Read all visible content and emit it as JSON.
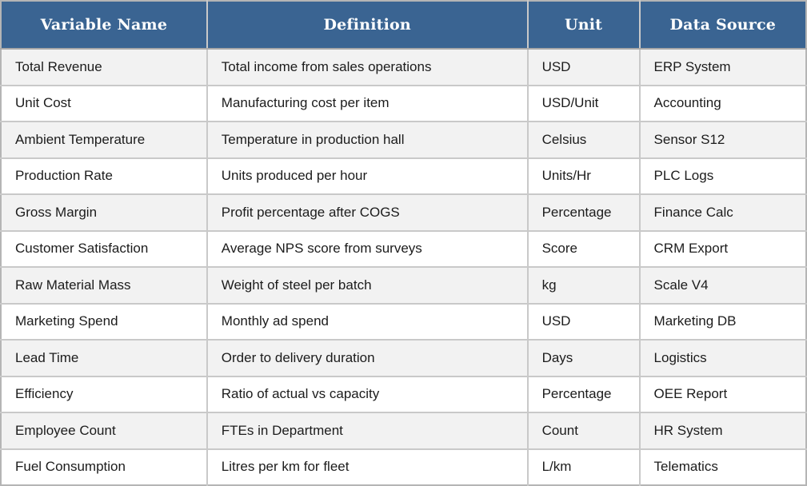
{
  "table": {
    "columns": [
      {
        "label": "Variable Name"
      },
      {
        "label": "Definition"
      },
      {
        "label": "Unit"
      },
      {
        "label": "Data Source"
      }
    ],
    "rows": [
      {
        "variable": "Total Revenue",
        "definition": "Total income from sales operations",
        "unit": "USD",
        "source": "ERP System"
      },
      {
        "variable": "Unit Cost",
        "definition": "Manufacturing cost per item",
        "unit": "USD/Unit",
        "source": "Accounting"
      },
      {
        "variable": "Ambient Temperature",
        "definition": "Temperature in production hall",
        "unit": "Celsius",
        "source": "Sensor S12"
      },
      {
        "variable": "Production Rate",
        "definition": "Units produced per hour",
        "unit": "Units/Hr",
        "source": "PLC Logs"
      },
      {
        "variable": "Gross Margin",
        "definition": "Profit percentage after COGS",
        "unit": "Percentage",
        "source": "Finance Calc"
      },
      {
        "variable": "Customer Satisfaction",
        "definition": "Average NPS score from surveys",
        "unit": "Score",
        "source": "CRM Export"
      },
      {
        "variable": "Raw Material Mass",
        "definition": "Weight of steel per batch",
        "unit": "kg",
        "source": "Scale V4"
      },
      {
        "variable": "Marketing Spend",
        "definition": "Monthly ad spend",
        "unit": "USD",
        "source": "Marketing DB"
      },
      {
        "variable": "Lead Time",
        "definition": "Order to delivery duration",
        "unit": "Days",
        "source": "Logistics"
      },
      {
        "variable": "Efficiency",
        "definition": "Ratio of actual vs capacity",
        "unit": "Percentage",
        "source": "OEE Report"
      },
      {
        "variable": "Employee Count",
        "definition": "FTEs in Department",
        "unit": "Count",
        "source": "HR System"
      },
      {
        "variable": "Fuel Consumption",
        "definition": "Litres per km for fleet",
        "unit": "L/km",
        "source": "Telematics"
      }
    ]
  },
  "colors": {
    "header_bg": "#3a6492",
    "header_text": "#ffffff",
    "row_alt_bg": "#f2f2f2",
    "row_bg": "#ffffff",
    "border_outer": "#b5b5b5",
    "border_inner": "#c9c9c9",
    "body_text": "#1c1c1c"
  }
}
